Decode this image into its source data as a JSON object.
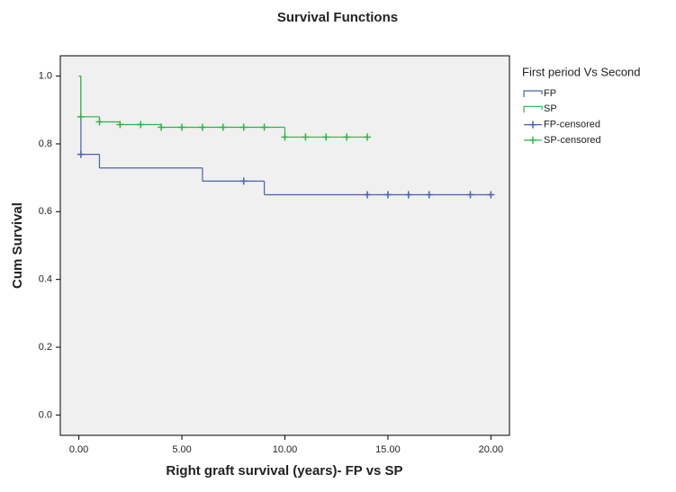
{
  "chart_data": {
    "type": "line",
    "title": "Survival Functions",
    "x_label": "Right graft survival (years)- FP vs SP",
    "y_label": "Cum Survival",
    "legend_title": "First period Vs Second",
    "legend": "outside right",
    "xlim": [
      -0.9,
      20.9
    ],
    "ylim": [
      -0.06,
      1.06
    ],
    "xticks": [
      {
        "value": 0,
        "label": "0.00"
      },
      {
        "value": 5,
        "label": "5.00"
      },
      {
        "value": 10,
        "label": "10.00"
      },
      {
        "value": 15,
        "label": "15.00"
      },
      {
        "value": 20,
        "label": "20.00"
      }
    ],
    "yticks": [
      {
        "value": 0,
        "label": "0.0"
      },
      0.2,
      0.4,
      0.6,
      0.8,
      {
        "value": 1,
        "label": "1.0"
      }
    ],
    "series": [
      {
        "name": "FP",
        "color": "#4a62ad",
        "drawstyle": "steps-post",
        "x": [
          0,
          0.1,
          1,
          6,
          9
        ],
        "values": [
          1.0,
          0.769,
          0.729,
          0.69,
          0.65
        ]
      },
      {
        "name": "SP",
        "color": "#2db34a",
        "drawstyle": "steps-post",
        "x": [
          0,
          0.1,
          1,
          2,
          4,
          10
        ],
        "values": [
          1.0,
          0.88,
          0.865,
          0.857,
          0.849,
          0.82
        ]
      },
      {
        "name": "FP-censored",
        "color": "#4a62ad",
        "marker": "+",
        "x": [
          0.1,
          8,
          14,
          15,
          16,
          17,
          19,
          20
        ],
        "values": [
          0.769,
          0.69,
          0.65,
          0.65,
          0.65,
          0.65,
          0.65,
          0.65
        ]
      },
      {
        "name": "SP-censored",
        "color": "#2db34a",
        "marker": "+",
        "x": [
          0.1,
          1,
          2,
          3,
          4,
          5,
          6,
          7,
          8,
          9,
          10,
          11,
          12,
          13,
          14
        ],
        "values": [
          0.88,
          0.865,
          0.857,
          0.857,
          0.849,
          0.849,
          0.849,
          0.849,
          0.849,
          0.849,
          0.82,
          0.82,
          0.82,
          0.82,
          0.82
        ]
      }
    ]
  }
}
